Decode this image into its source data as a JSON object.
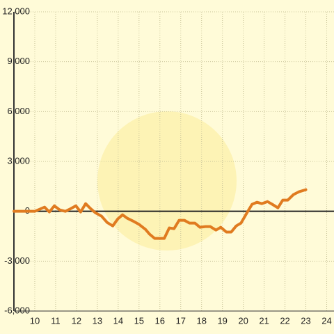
{
  "chart_data": {
    "type": "line",
    "x": [
      9.0,
      10.0,
      10.47,
      10.7,
      10.94,
      11.2,
      11.47,
      11.74,
      11.97,
      12.2,
      12.44,
      12.67,
      12.9,
      13.2,
      13.47,
      13.74,
      13.98,
      14.21,
      14.44,
      14.71,
      15.01,
      15.31,
      15.51,
      15.75,
      16.21,
      16.45,
      16.68,
      16.92,
      17.18,
      17.42,
      17.68,
      17.92,
      18.19,
      18.42,
      18.69,
      18.92,
      19.19,
      19.42,
      19.66,
      19.89,
      20.16,
      20.42,
      20.66,
      20.89,
      21.16,
      21.39,
      21.66,
      21.89,
      22.13,
      22.4,
      22.66,
      23.0
    ],
    "series": [
      {
        "color": "#e07b20",
        "values": [
          0,
          0,
          250,
          -40,
          330,
          80,
          0,
          170,
          330,
          -40,
          460,
          170,
          -80,
          -290,
          -670,
          -880,
          -460,
          -210,
          -420,
          -585,
          -795,
          -1090,
          -1380,
          -1630,
          -1630,
          -1000,
          -1045,
          -545,
          -545,
          -710,
          -710,
          -960,
          -920,
          -920,
          -1130,
          -960,
          -1250,
          -1250,
          -880,
          -710,
          -125,
          420,
          545,
          460,
          585,
          420,
          210,
          670,
          670,
          1000,
          1170,
          1300
        ]
      }
    ],
    "xlim": [
      9,
      24.35
    ],
    "xticks": [
      10,
      11,
      12,
      13,
      14,
      15,
      16,
      17,
      18,
      19,
      20,
      21,
      22,
      23,
      24
    ],
    "ylim": [
      -6000,
      12000
    ],
    "yticks": [
      {
        "value": -6000,
        "label": "-6,000"
      },
      {
        "value": -3000,
        "label": "-3,000"
      },
      0,
      {
        "value": 3000,
        "label": "3,000"
      },
      {
        "value": 6000,
        "label": "6,000"
      },
      {
        "value": 9000,
        "label": "9,000"
      },
      {
        "value": 12000,
        "label": "12,000"
      }
    ],
    "grid": true
  }
}
